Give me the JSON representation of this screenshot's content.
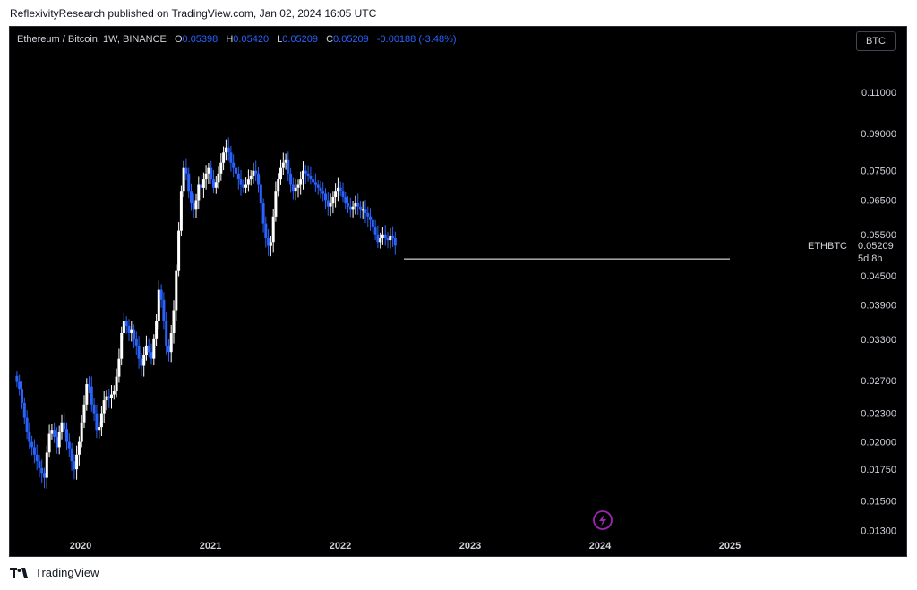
{
  "publisher": "ReflexivityResearch published on TradingView.com, Jan 02, 2024 16:05 UTC",
  "legend": {
    "symbol": "Ethereum / Bitcoin, 1W, BINANCE",
    "o_label": "O",
    "o_value": "0.05398",
    "h_label": "H",
    "h_value": "0.05420",
    "l_label": "L",
    "l_value": "0.05209",
    "c_label": "C",
    "c_value": "0.05209",
    "change": "-0.00188 (-3.48%)"
  },
  "currency_button": "BTC",
  "price_label": {
    "symbol": "ETHBTC",
    "price": "0.05209",
    "countdown": "5d 8h"
  },
  "footer": {
    "brand": "TradingView"
  },
  "colors": {
    "up": "#ffffff",
    "down": "#2962ff",
    "background": "#000000",
    "text": "#d1d4dc",
    "support_line": "#ffffff",
    "watermark": "#9c27b0"
  },
  "chart_data": {
    "type": "candlestick",
    "scale": "log",
    "ylim": [
      0.0123,
      0.127
    ],
    "y_ticks": [
      "0.11000",
      "0.09000",
      "0.07500",
      "0.06500",
      "0.05500",
      "0.04500",
      "0.03900",
      "0.03300",
      "0.02700",
      "0.02300",
      "0.02000",
      "0.01750",
      "0.01500",
      "0.01300"
    ],
    "x_ticks": [
      "2020",
      "2021",
      "2022",
      "2023",
      "2024",
      "2025"
    ],
    "support_level": 0.0488,
    "support_start": "2022",
    "support_end": "2025",
    "series": [
      {
        "name": "ETHBTC",
        "interval": "1W",
        "start": "2019",
        "close": [
          0.0268,
          0.0258,
          0.0242,
          0.0225,
          0.021,
          0.02,
          0.0195,
          0.0188,
          0.0182,
          0.0176,
          0.0172,
          0.0168,
          0.019,
          0.0208,
          0.0212,
          0.0205,
          0.0195,
          0.021,
          0.022,
          0.0213,
          0.02,
          0.0194,
          0.0182,
          0.0175,
          0.0188,
          0.02,
          0.022,
          0.024,
          0.0265,
          0.0262,
          0.024,
          0.023,
          0.0212,
          0.0215,
          0.023,
          0.0245,
          0.025,
          0.0248,
          0.0252,
          0.0256,
          0.0275,
          0.03,
          0.034,
          0.036,
          0.0352,
          0.034,
          0.0345,
          0.033,
          0.032,
          0.03,
          0.029,
          0.0305,
          0.032,
          0.031,
          0.03,
          0.033,
          0.036,
          0.042,
          0.04,
          0.036,
          0.032,
          0.031,
          0.034,
          0.038,
          0.046,
          0.056,
          0.068,
          0.076,
          0.074,
          0.068,
          0.064,
          0.062,
          0.065,
          0.07,
          0.069,
          0.072,
          0.074,
          0.076,
          0.072,
          0.069,
          0.071,
          0.074,
          0.078,
          0.082,
          0.084,
          0.082,
          0.078,
          0.076,
          0.074,
          0.072,
          0.07,
          0.069,
          0.07,
          0.072,
          0.073,
          0.075,
          0.074,
          0.07,
          0.064,
          0.058,
          0.054,
          0.052,
          0.053,
          0.06,
          0.068,
          0.072,
          0.076,
          0.078,
          0.079,
          0.074,
          0.07,
          0.068,
          0.069,
          0.07,
          0.072,
          0.075,
          0.074,
          0.073,
          0.072,
          0.071,
          0.07,
          0.069,
          0.068,
          0.067,
          0.065,
          0.063,
          0.064,
          0.066,
          0.068,
          0.069,
          0.068,
          0.066,
          0.064,
          0.063,
          0.062,
          0.063,
          0.064,
          0.063,
          0.062,
          0.062,
          0.061,
          0.06,
          0.059,
          0.057,
          0.055,
          0.053,
          0.054,
          0.055,
          0.054,
          0.0535,
          0.0545,
          0.054,
          0.05209
        ]
      }
    ]
  }
}
